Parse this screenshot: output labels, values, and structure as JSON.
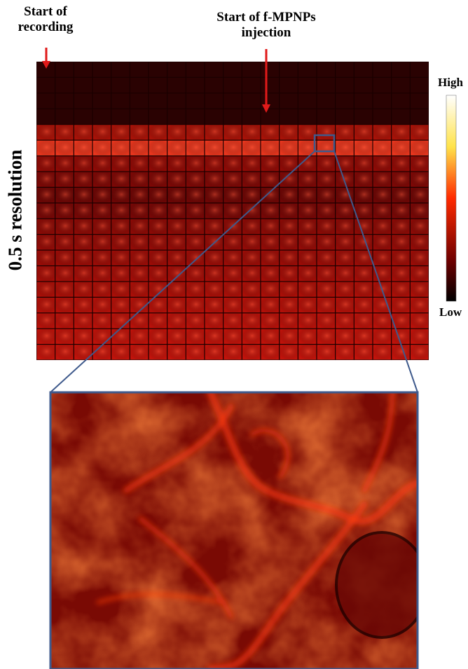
{
  "labels": {
    "recording": {
      "lines": [
        "Start of",
        "recording"
      ]
    },
    "injection": {
      "lines": [
        "Start of f-MPNPs",
        "injection"
      ]
    },
    "resolution": "0.5 s resolution",
    "colorbar": {
      "high": "High",
      "low": "Low"
    }
  }
}
